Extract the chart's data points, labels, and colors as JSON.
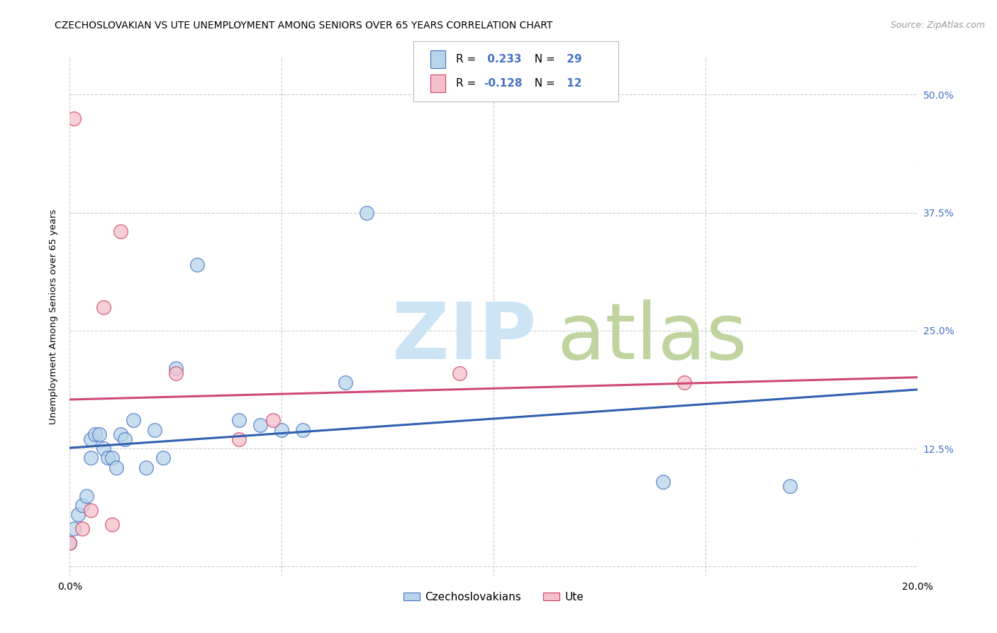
{
  "title": "CZECHOSLOVAKIAN VS UTE UNEMPLOYMENT AMONG SENIORS OVER 65 YEARS CORRELATION CHART",
  "source": "Source: ZipAtlas.com",
  "ylabel": "Unemployment Among Seniors over 65 years",
  "xlim": [
    0.0,
    0.2
  ],
  "ylim": [
    -0.01,
    0.54
  ],
  "yticks": [
    0.0,
    0.125,
    0.25,
    0.375,
    0.5
  ],
  "ytick_labels": [
    "",
    "12.5%",
    "25.0%",
    "37.5%",
    "50.0%"
  ],
  "xtick_positions": [
    0.0,
    0.05,
    0.1,
    0.15,
    0.2
  ],
  "xtick_labels": [
    "0.0%",
    "",
    "",
    "",
    "20.0%"
  ],
  "R_czech": "0.233",
  "N_czech": "29",
  "R_ute": "-0.128",
  "N_ute": "12",
  "czech_face_color": "#b8d4ea",
  "czech_edge_color": "#4472c4",
  "ute_face_color": "#f4c0cc",
  "ute_edge_color": "#d04060",
  "czech_line_color": "#3060b0",
  "ute_line_color": "#d04878",
  "czech_x": [
    0.0,
    0.001,
    0.002,
    0.003,
    0.004,
    0.005,
    0.005,
    0.006,
    0.007,
    0.008,
    0.009,
    0.01,
    0.011,
    0.012,
    0.013,
    0.015,
    0.018,
    0.02,
    0.022,
    0.025,
    0.03,
    0.04,
    0.045,
    0.05,
    0.055,
    0.065,
    0.07,
    0.14,
    0.17
  ],
  "czech_y": [
    0.025,
    0.04,
    0.055,
    0.065,
    0.075,
    0.115,
    0.135,
    0.14,
    0.14,
    0.125,
    0.115,
    0.115,
    0.105,
    0.14,
    0.135,
    0.155,
    0.105,
    0.145,
    0.115,
    0.21,
    0.32,
    0.155,
    0.15,
    0.145,
    0.145,
    0.195,
    0.375,
    0.09,
    0.085
  ],
  "ute_x": [
    0.0,
    0.001,
    0.003,
    0.005,
    0.008,
    0.01,
    0.012,
    0.025,
    0.04,
    0.048,
    0.092,
    0.145
  ],
  "ute_y": [
    0.025,
    0.475,
    0.04,
    0.06,
    0.275,
    0.045,
    0.355,
    0.205,
    0.135,
    0.155,
    0.205,
    0.195
  ],
  "bg_color": "#ffffff",
  "grid_color": "#cccccc",
  "watermark_zip_color": "#cde4f5",
  "watermark_atlas_color": "#c0d4a0"
}
